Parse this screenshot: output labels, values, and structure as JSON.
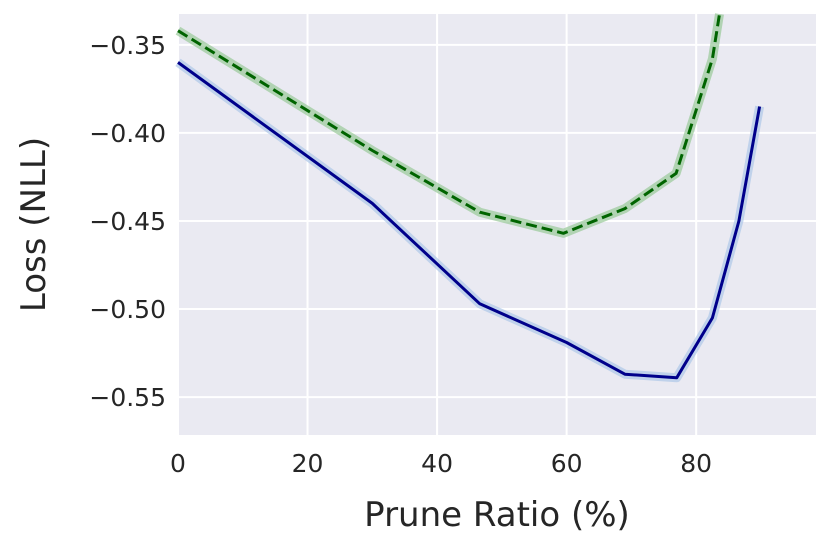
{
  "chart_data": {
    "type": "line",
    "title": "",
    "xlabel": "Prune Ratio (%)",
    "ylabel": "Loss (NLL)",
    "xlim": [
      0,
      98.5
    ],
    "ylim": [
      -0.5715,
      -0.3325
    ],
    "xticks": [
      0,
      20,
      40,
      60,
      80
    ],
    "xtick_labels": [
      "0",
      "20",
      "40",
      "60",
      "80"
    ],
    "yticks": [
      -0.35,
      -0.4,
      -0.45,
      -0.5,
      -0.55
    ],
    "ytick_labels": [
      "−0.35",
      "−0.40",
      "−0.45",
      "−0.50",
      "−0.55"
    ],
    "grid": true,
    "background_color": "#eaeaf2",
    "grid_color": "#ffffff",
    "series": [
      {
        "color": "#00008b",
        "band_color": "#aec7e8",
        "line_style": "solid",
        "x": [
          0,
          30,
          46.6,
          60,
          69,
          77,
          82.5,
          86.6,
          89.8
        ],
        "y": [
          -0.36,
          -0.44,
          -0.497,
          -0.519,
          -0.537,
          -0.539,
          -0.505,
          -0.45,
          -0.385
        ]
      },
      {
        "color": "#006400",
        "band_color": "#98c998",
        "line_style": "dashed",
        "x": [
          0,
          30,
          46.6,
          59.5,
          69,
          76.9,
          82.5,
          83.6
        ],
        "y": [
          -0.342,
          -0.41,
          -0.445,
          -0.457,
          -0.443,
          -0.423,
          -0.358,
          -0.3325
        ]
      }
    ]
  }
}
